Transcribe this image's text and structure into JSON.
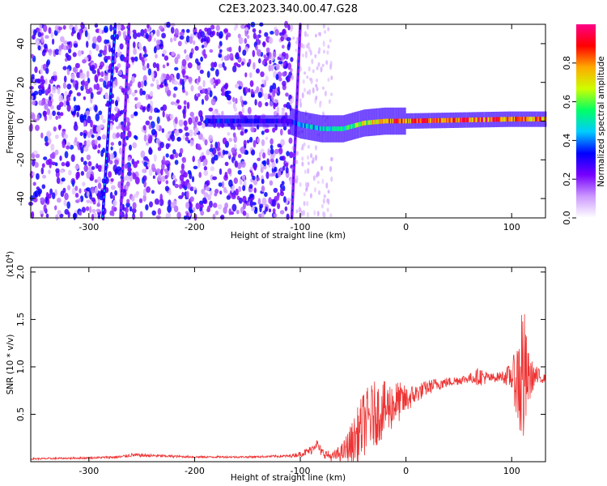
{
  "title": "C2E3.2023.340.00.47.G28",
  "colors": {
    "snr_line": "#ee3333",
    "axis": "#000000"
  },
  "chart_data": [
    {
      "type": "heatmap",
      "xlabel": "Height of straight line (km)",
      "ylabel": "Frequency (Hz)",
      "xlim": [
        -355,
        132
      ],
      "ylim": [
        -50,
        50
      ],
      "x_ticks": [
        -300,
        -200,
        -100,
        0,
        100
      ],
      "x_tick_labels": [
        "-300",
        "-200",
        "-100",
        "0",
        "100"
      ],
      "y_ticks": [
        -40,
        -20,
        0,
        20,
        40
      ],
      "y_tick_labels": [
        "-40",
        "-20",
        "0",
        "20",
        "40"
      ],
      "colorbar": {
        "label": "Normalized spectral amplitude",
        "range": [
          0,
          1
        ],
        "ticks": [
          0.0,
          0.2,
          0.4,
          0.6,
          0.8
        ],
        "tick_labels": [
          "0.0",
          "0.2",
          "0.4",
          "0.6",
          "0.8"
        ],
        "colors": [
          "#ffffff",
          "#cc99ff",
          "#7700ff",
          "#0000ff",
          "#00ccff",
          "#00ff66",
          "#ccff00",
          "#ffaa00",
          "#ff0000",
          "#ff0088"
        ]
      },
      "noise_region": {
        "x_range": [
          -355,
          -108
        ],
        "amplitude_range": [
          0.05,
          0.35
        ]
      },
      "noise_fade_region": {
        "x_range": [
          -108,
          -70
        ]
      },
      "trails": [
        {
          "x_at_bottom": -287,
          "x_at_top": -275,
          "amplitude": 0.3
        },
        {
          "x_at_bottom": -270,
          "x_at_top": -262,
          "amplitude": 0.2
        },
        {
          "x_at_bottom": -108,
          "x_at_top": -100,
          "amplitude": 0.2
        }
      ],
      "signal_band": [
        {
          "x": -190,
          "freq_center": 0,
          "amplitude": 0.35
        },
        {
          "x": -150,
          "freq_center": 0,
          "amplitude": 0.35
        },
        {
          "x": -110,
          "freq_center": 0,
          "amplitude": 0.3
        },
        {
          "x": -100,
          "freq_center": -2,
          "amplitude": 0.45
        },
        {
          "x": -80,
          "freq_center": -4,
          "amplitude": 0.5
        },
        {
          "x": -60,
          "freq_center": -4,
          "amplitude": 0.55
        },
        {
          "x": -40,
          "freq_center": -1,
          "amplitude": 0.7
        },
        {
          "x": -20,
          "freq_center": 0,
          "amplitude": 0.85
        },
        {
          "x": 0,
          "freq_center": 0,
          "amplitude": 0.9
        },
        {
          "x": 50,
          "freq_center": 0.5,
          "amplitude": 0.9
        },
        {
          "x": 100,
          "freq_center": 1,
          "amplitude": 0.9
        },
        {
          "x": 132,
          "freq_center": 1,
          "amplitude": 0.85
        }
      ]
    },
    {
      "type": "line",
      "xlabel": "Height of straight line (km)",
      "ylabel": "SNR (10 * v/v)",
      "y_multiplier": "(x10",
      "y_multiplier_exp": "4",
      "y_multiplier_close": ")",
      "xlim": [
        -355,
        132
      ],
      "ylim": [
        0,
        2.05
      ],
      "x_ticks": [
        -300,
        -200,
        -100,
        0,
        100
      ],
      "x_tick_labels": [
        "-300",
        "-200",
        "-100",
        "0",
        "100"
      ],
      "y_ticks": [
        0.5,
        1.0,
        1.5,
        2.0
      ],
      "y_tick_labels": [
        "0.5",
        "1.0",
        "1.5",
        "2.0"
      ],
      "series": [
        {
          "x": [
            -355,
            -300,
            -270,
            -260,
            -200,
            -150,
            -110,
            -100,
            -90,
            -85,
            -80,
            -70,
            -60,
            -50,
            -40,
            -30,
            -20,
            -10,
            0,
            10,
            20,
            30,
            40,
            50,
            60,
            70,
            80,
            90,
            100,
            105,
            110,
            115,
            120,
            132
          ],
          "y": [
            0.03,
            0.04,
            0.05,
            0.07,
            0.05,
            0.05,
            0.06,
            0.08,
            0.12,
            0.2,
            0.1,
            0.05,
            0.1,
            0.2,
            0.4,
            0.5,
            0.55,
            0.62,
            0.65,
            0.72,
            0.78,
            0.82,
            0.84,
            0.86,
            0.88,
            0.9,
            0.88,
            0.9,
            0.9,
            0.85,
            0.9,
            0.85,
            0.9,
            0.88
          ],
          "noise_amplitude": [
            0.01,
            0.01,
            0.015,
            0.02,
            0.01,
            0.01,
            0.015,
            0.03,
            0.05,
            0.06,
            0.05,
            0.05,
            0.1,
            0.25,
            0.35,
            0.35,
            0.3,
            0.25,
            0.15,
            0.1,
            0.08,
            0.07,
            0.05,
            0.05,
            0.05,
            0.1,
            0.05,
            0.05,
            0.15,
            0.4,
            1.0,
            0.35,
            0.15,
            0.03
          ]
        }
      ]
    }
  ]
}
